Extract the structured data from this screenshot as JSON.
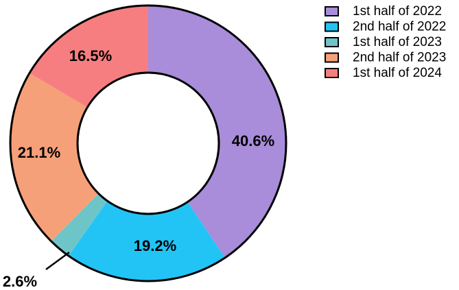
{
  "chart_data": {
    "type": "pie",
    "variant": "donut",
    "title": "",
    "categories": [
      "1st half of 2022",
      "2nd half of 2022",
      "1st half of 2023",
      "2nd half of 2023",
      "1st half of 2024"
    ],
    "values": [
      40.6,
      19.2,
      2.6,
      21.1,
      16.5
    ],
    "value_labels": [
      "40.6%",
      "19.2%",
      "2.6%",
      "21.1%",
      "16.5%"
    ],
    "colors": [
      "#A98CDA",
      "#22C4F6",
      "#6EC5C8",
      "#F6A07A",
      "#F77E80"
    ],
    "start_angle": "12 o'clock",
    "direction": "clockwise",
    "legend_position": "top-right"
  }
}
